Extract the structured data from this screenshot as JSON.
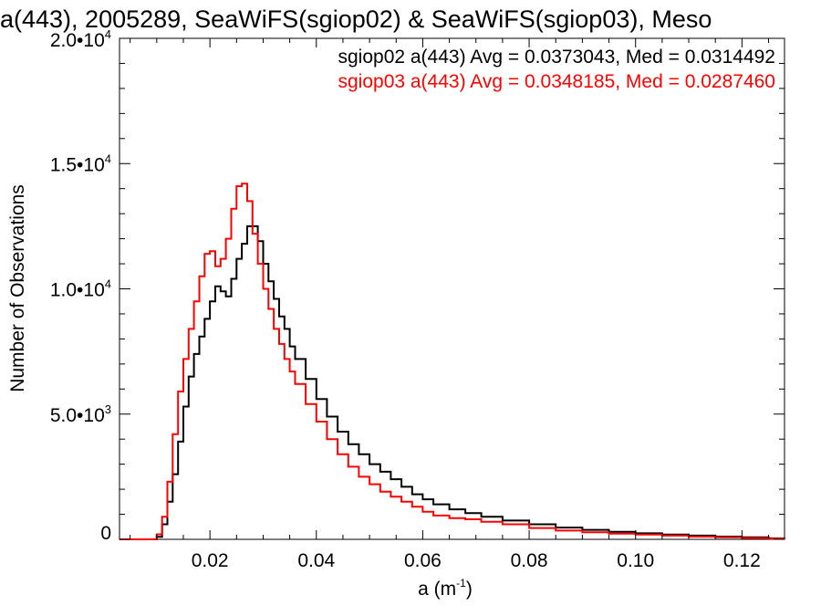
{
  "chart_data": {
    "type": "line",
    "title": "a(443), 2005289, SeaWiFS(sgiop02) & SeaWiFS(sgiop03), Meso",
    "xlabel": "a (m",
    "xlabel_sup": "-1",
    "xlabel_close": ")",
    "ylabel": "Number of Observations",
    "xlim": [
      0.003,
      0.128
    ],
    "ylim": [
      0,
      20000
    ],
    "x_ticks": [
      {
        "value": 0.02,
        "label": "0.02"
      },
      {
        "value": 0.04,
        "label": "0.04"
      },
      {
        "value": 0.06,
        "label": "0.06"
      },
      {
        "value": 0.08,
        "label": "0.08"
      },
      {
        "value": 0.1,
        "label": "0.10"
      },
      {
        "value": 0.12,
        "label": "0.12"
      }
    ],
    "y_ticks": [
      {
        "value": 0,
        "mantissa": "0",
        "exp": ""
      },
      {
        "value": 5000,
        "mantissa": "5.0•10",
        "exp": "3"
      },
      {
        "value": 10000,
        "mantissa": "1.0•10",
        "exp": "4"
      },
      {
        "value": 15000,
        "mantissa": "1.5•10",
        "exp": "4"
      },
      {
        "value": 20000,
        "mantissa": "2.0•10",
        "exp": "4"
      }
    ],
    "legend_placement": "top-right",
    "series": [
      {
        "name": "sgiop02 a(443) Avg = 0.0373043, Med = 0.0314492",
        "color": "#000000",
        "x": [
          0.003,
          0.009,
          0.01,
          0.011,
          0.012,
          0.013,
          0.014,
          0.015,
          0.016,
          0.017,
          0.018,
          0.019,
          0.02,
          0.021,
          0.022,
          0.023,
          0.024,
          0.025,
          0.026,
          0.027,
          0.028,
          0.029,
          0.03,
          0.031,
          0.032,
          0.033,
          0.034,
          0.035,
          0.036,
          0.038,
          0.04,
          0.042,
          0.044,
          0.046,
          0.048,
          0.05,
          0.052,
          0.054,
          0.056,
          0.058,
          0.06,
          0.062,
          0.065,
          0.068,
          0.071,
          0.075,
          0.08,
          0.085,
          0.09,
          0.095,
          0.1,
          0.105,
          0.11,
          0.115,
          0.12,
          0.125,
          0.128
        ],
        "y": [
          0,
          0,
          100,
          600,
          1500,
          2600,
          3900,
          5300,
          6500,
          7400,
          8100,
          8800,
          9500,
          10100,
          9900,
          9700,
          10400,
          11200,
          11800,
          12500,
          12500,
          11900,
          11000,
          10300,
          9600,
          8900,
          8400,
          7700,
          7200,
          6400,
          5600,
          4900,
          4300,
          3800,
          3400,
          3000,
          2700,
          2400,
          2100,
          1800,
          1600,
          1400,
          1200,
          1050,
          900,
          750,
          600,
          470,
          380,
          300,
          240,
          190,
          150,
          110,
          80,
          40,
          30
        ]
      },
      {
        "name": "sgiop03 a(443) Avg = 0.0348185, Med = 0.0287460",
        "color": "#ff0000",
        "x": [
          0.003,
          0.009,
          0.01,
          0.011,
          0.012,
          0.013,
          0.014,
          0.015,
          0.016,
          0.017,
          0.018,
          0.019,
          0.02,
          0.021,
          0.022,
          0.023,
          0.024,
          0.025,
          0.026,
          0.027,
          0.028,
          0.029,
          0.03,
          0.031,
          0.032,
          0.033,
          0.034,
          0.035,
          0.036,
          0.038,
          0.04,
          0.042,
          0.044,
          0.046,
          0.048,
          0.05,
          0.052,
          0.054,
          0.056,
          0.058,
          0.06,
          0.062,
          0.065,
          0.068,
          0.071,
          0.075,
          0.08,
          0.085,
          0.09,
          0.095,
          0.1,
          0.105,
          0.11,
          0.115,
          0.12,
          0.125,
          0.128
        ],
        "y": [
          0,
          0,
          200,
          900,
          2300,
          4200,
          5900,
          7200,
          8400,
          9500,
          10500,
          11400,
          11500,
          10900,
          11200,
          12000,
          13200,
          14100,
          14200,
          13500,
          12200,
          11000,
          10000,
          9200,
          8400,
          7800,
          7200,
          6700,
          6200,
          5400,
          4700,
          4000,
          3400,
          2900,
          2500,
          2200,
          1900,
          1700,
          1500,
          1300,
          1100,
          950,
          850,
          800,
          700,
          600,
          450,
          350,
          280,
          230,
          190,
          150,
          110,
          80,
          50,
          30,
          20
        ]
      }
    ]
  }
}
